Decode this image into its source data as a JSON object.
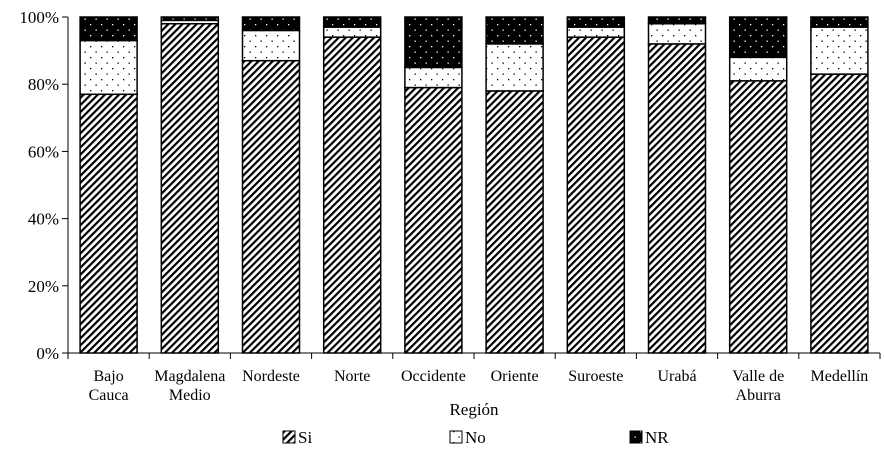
{
  "chart_data": {
    "type": "bar",
    "stacked": true,
    "xlabel": "Región",
    "ylabel": "",
    "ylim": [
      0,
      100
    ],
    "y_ticks": [
      "0%",
      "20%",
      "40%",
      "60%",
      "80%",
      "100%"
    ],
    "categories": [
      [
        "Bajo",
        "Cauca"
      ],
      [
        "Magdalena",
        "Medio"
      ],
      [
        "Nordeste"
      ],
      [
        "Norte"
      ],
      [
        "Occidente"
      ],
      [
        "Oriente"
      ],
      [
        "Suroeste"
      ],
      [
        "Urabá"
      ],
      [
        "Valle de",
        "Aburra"
      ],
      [
        "Medellín"
      ]
    ],
    "series": [
      {
        "name": "Si",
        "pattern": "diagonal-hatch",
        "values": [
          77,
          98,
          87,
          94,
          79,
          78,
          94,
          92,
          81,
          83
        ]
      },
      {
        "name": "No",
        "pattern": "sparse-dots",
        "values": [
          16,
          1,
          9,
          3,
          6,
          14,
          3,
          6,
          7,
          14
        ]
      },
      {
        "name": "NR",
        "pattern": "black-dotted",
        "values": [
          7,
          1,
          4,
          3,
          15,
          8,
          3,
          2,
          12,
          3
        ]
      }
    ],
    "grid": false,
    "legend_position": "bottom"
  }
}
